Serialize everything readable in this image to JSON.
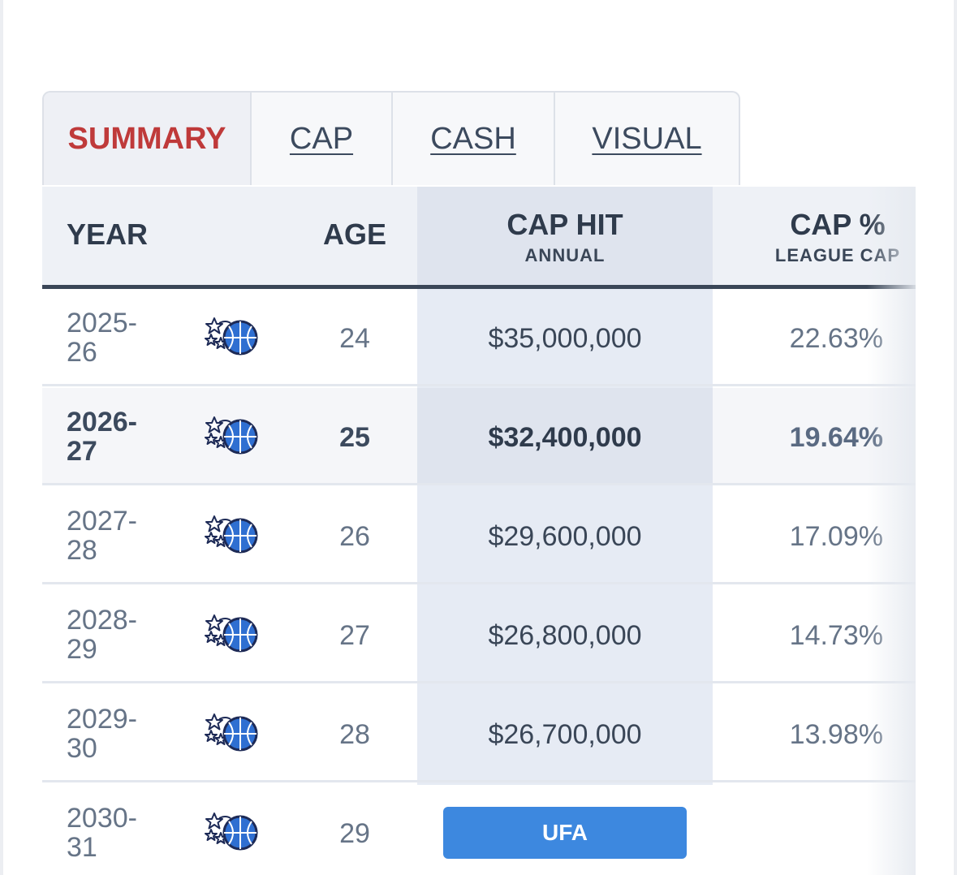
{
  "tabs": [
    {
      "label": "SUMMARY",
      "active": true
    },
    {
      "label": "CAP",
      "active": false
    },
    {
      "label": "CASH",
      "active": false
    },
    {
      "label": "VISUAL",
      "active": false
    }
  ],
  "table": {
    "headers": {
      "year": "YEAR",
      "age": "AGE",
      "cap_hit": "CAP HIT",
      "cap_hit_sub": "ANNUAL",
      "cap_pct": "CAP %",
      "cap_pct_sub": "LEAGUE CAP"
    },
    "team_logo_icon": "orlando-magic-logo-icon",
    "rows": [
      {
        "year_a": "2025-",
        "year_b": "26",
        "age": "24",
        "cap_hit": "$35,000,000",
        "cap_pct": "22.63%"
      },
      {
        "year_a": "2026-",
        "year_b": "27",
        "age": "25",
        "cap_hit": "$32,400,000",
        "cap_pct": "19.64%"
      },
      {
        "year_a": "2027-",
        "year_b": "28",
        "age": "26",
        "cap_hit": "$29,600,000",
        "cap_pct": "17.09%"
      },
      {
        "year_a": "2028-",
        "year_b": "29",
        "age": "27",
        "cap_hit": "$26,800,000",
        "cap_pct": "14.73%"
      },
      {
        "year_a": "2029-",
        "year_b": "30",
        "age": "28",
        "cap_hit": "$26,700,000",
        "cap_pct": "13.98%"
      },
      {
        "year_a": "2030-",
        "year_b": "31",
        "age": "29",
        "status": "UFA"
      }
    ]
  },
  "colors": {
    "active_tab": "#bf3a3a",
    "ufa_button": "#3d88df",
    "header_rule": "#3a4657"
  }
}
